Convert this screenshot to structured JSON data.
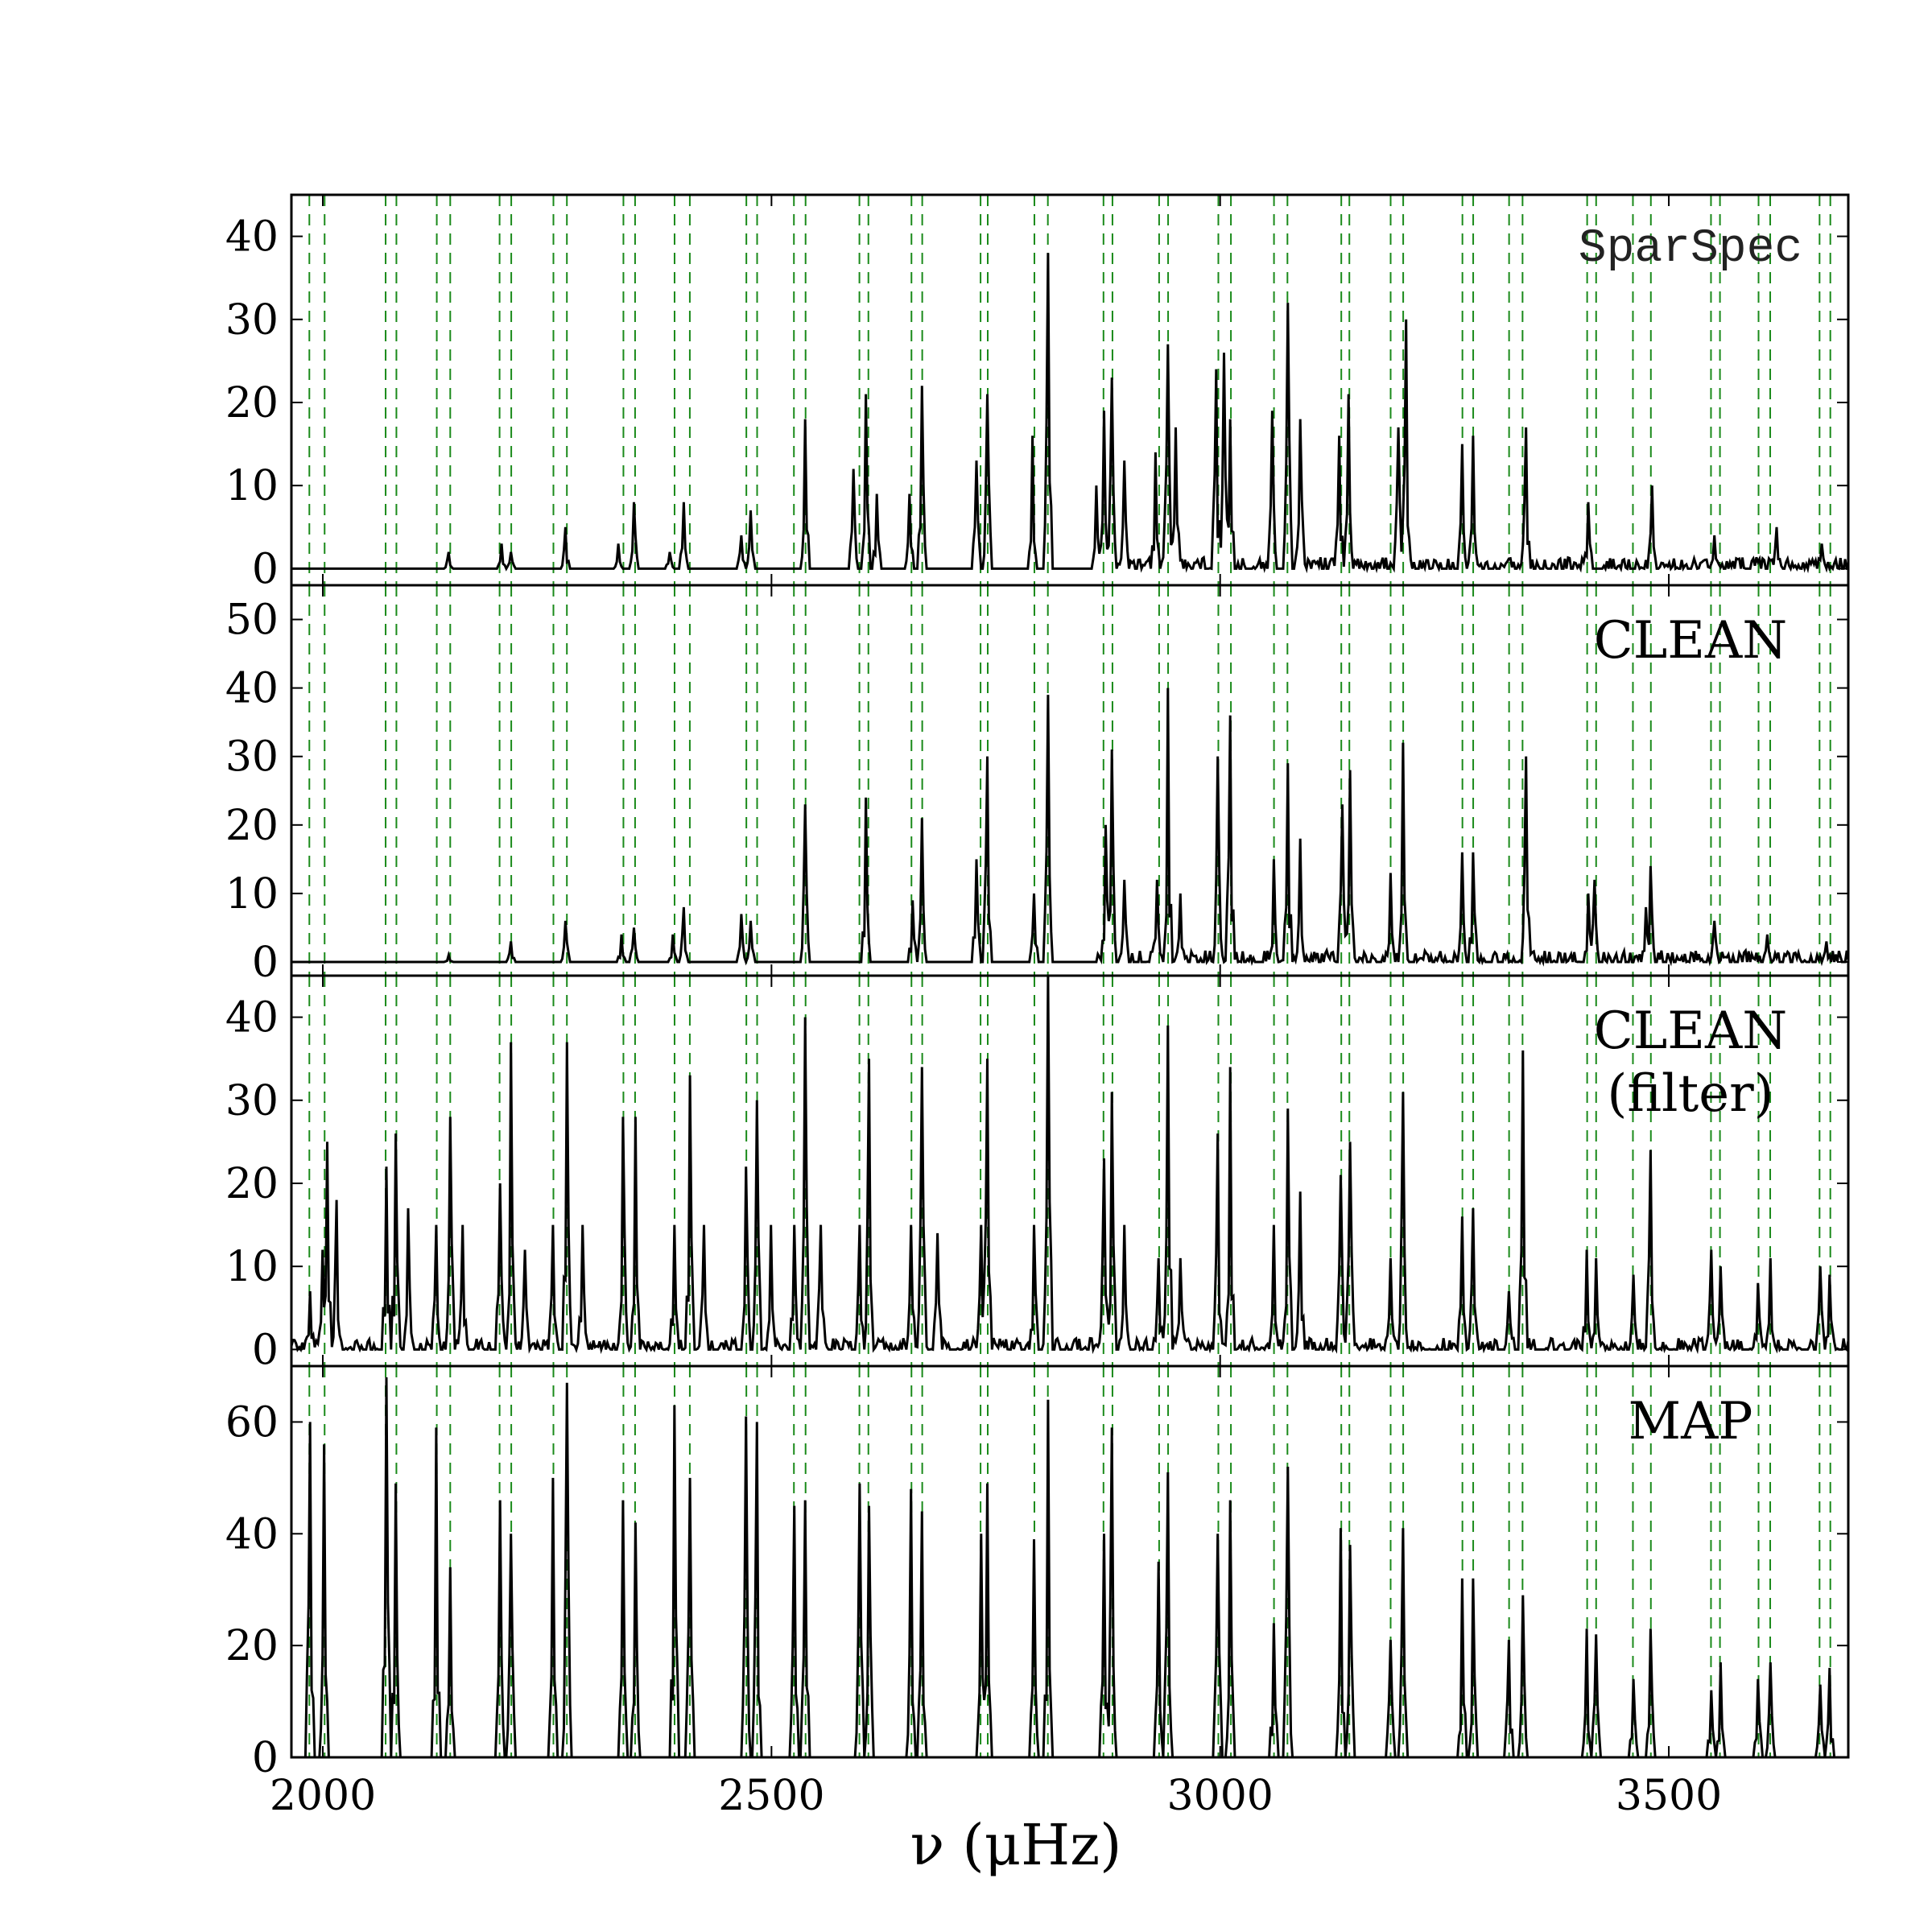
{
  "chart_data": {
    "type": "line",
    "xlabel": "ν (μHz)",
    "xlim": [
      1965,
      3700
    ],
    "x_ticks": [
      2000,
      2500,
      3000,
      3500
    ],
    "mode_frequencies": [
      1985,
      2002,
      2070,
      2082,
      2127,
      2142,
      2197,
      2210,
      2257,
      2272,
      2335,
      2348,
      2392,
      2409,
      2472,
      2484,
      2525,
      2538,
      2598,
      2608,
      2656,
      2668,
      2733,
      2741,
      2793,
      2808,
      2870,
      2880,
      2932,
      2942,
      2998,
      3012,
      3060,
      3075,
      3135,
      3144,
      3190,
      3204,
      3270,
      3282,
      3322,
      3337,
      3409,
      3419,
      3460,
      3480,
      3547,
      3557,
      3600,
      3613,
      3668,
      3680
    ],
    "panels": [
      {
        "label": "SparSpec",
        "ylim": [
          -2,
          45
        ],
        "y_ticks": [
          0,
          10,
          20,
          30,
          40
        ],
        "peaks": [
          [
            2140,
            2
          ],
          [
            2199,
            3
          ],
          [
            2210,
            2
          ],
          [
            2270,
            5
          ],
          [
            2330,
            3
          ],
          [
            2346,
            8
          ],
          [
            2387,
            2
          ],
          [
            2403,
            8
          ],
          [
            2466,
            4
          ],
          [
            2477,
            7
          ],
          [
            2537,
            18
          ],
          [
            2606,
            21
          ],
          [
            2592,
            12
          ],
          [
            2618,
            9
          ],
          [
            2653,
            9
          ],
          [
            2668,
            22
          ],
          [
            2728,
            13
          ],
          [
            2741,
            21
          ],
          [
            2790,
            16
          ],
          [
            2808,
            38
          ],
          [
            2862,
            10
          ],
          [
            2871,
            19
          ],
          [
            2880,
            23
          ],
          [
            2893,
            13
          ],
          [
            2928,
            14
          ],
          [
            2942,
            27
          ],
          [
            2950,
            17
          ],
          [
            2995,
            24
          ],
          [
            3005,
            26
          ],
          [
            3012,
            18
          ],
          [
            3058,
            19
          ],
          [
            3075,
            32
          ],
          [
            3090,
            18
          ],
          [
            3132,
            16
          ],
          [
            3143,
            21
          ],
          [
            3198,
            17
          ],
          [
            3207,
            30
          ],
          [
            3270,
            15
          ],
          [
            3282,
            16
          ],
          [
            3340,
            17
          ],
          [
            3410,
            8
          ],
          [
            3482,
            10
          ],
          [
            3550,
            4
          ],
          [
            3620,
            5
          ],
          [
            3670,
            3
          ]
        ],
        "noise_from": 2860
      },
      {
        "label": "CLEAN",
        "ylim": [
          -2,
          55
        ],
        "y_ticks": [
          0,
          10,
          20,
          30,
          40,
          50
        ],
        "peaks": [
          [
            2140,
            1
          ],
          [
            2210,
            3
          ],
          [
            2270,
            6
          ],
          [
            2332,
            4
          ],
          [
            2346,
            5
          ],
          [
            2390,
            4
          ],
          [
            2403,
            8
          ],
          [
            2466,
            7
          ],
          [
            2477,
            6
          ],
          [
            2537,
            23
          ],
          [
            2606,
            24
          ],
          [
            2658,
            9
          ],
          [
            2668,
            21
          ],
          [
            2728,
            15
          ],
          [
            2741,
            30
          ],
          [
            2793,
            10
          ],
          [
            2808,
            39
          ],
          [
            2872,
            20
          ],
          [
            2880,
            31
          ],
          [
            2893,
            12
          ],
          [
            2930,
            12
          ],
          [
            2942,
            40
          ],
          [
            2955,
            10
          ],
          [
            2998,
            30
          ],
          [
            3012,
            36
          ],
          [
            3060,
            15
          ],
          [
            3075,
            29
          ],
          [
            3090,
            18
          ],
          [
            3136,
            23
          ],
          [
            3145,
            28
          ],
          [
            3190,
            13
          ],
          [
            3204,
            32
          ],
          [
            3270,
            16
          ],
          [
            3282,
            16
          ],
          [
            3340,
            30
          ],
          [
            3411,
            10
          ],
          [
            3418,
            12
          ],
          [
            3475,
            8
          ],
          [
            3480,
            14
          ],
          [
            3550,
            6
          ],
          [
            3610,
            4
          ],
          [
            3676,
            3
          ]
        ],
        "noise_from": 2860
      },
      {
        "label": "CLEAN",
        "label_line2": "(filter)",
        "ylim": [
          -2,
          45
        ],
        "y_ticks": [
          0,
          10,
          20,
          30,
          40
        ],
        "peaks": [
          [
            1985,
            7
          ],
          [
            2000,
            12
          ],
          [
            2005,
            25
          ],
          [
            2015,
            18
          ],
          [
            2070,
            22
          ],
          [
            2082,
            26
          ],
          [
            2095,
            17
          ],
          [
            2127,
            15
          ],
          [
            2142,
            28
          ],
          [
            2155,
            15
          ],
          [
            2197,
            20
          ],
          [
            2210,
            37
          ],
          [
            2225,
            12
          ],
          [
            2257,
            15
          ],
          [
            2272,
            37
          ],
          [
            2290,
            15
          ],
          [
            2335,
            28
          ],
          [
            2348,
            28
          ],
          [
            2392,
            15
          ],
          [
            2409,
            33
          ],
          [
            2425,
            15
          ],
          [
            2472,
            22
          ],
          [
            2484,
            30
          ],
          [
            2500,
            15
          ],
          [
            2525,
            15
          ],
          [
            2538,
            40
          ],
          [
            2555,
            15
          ],
          [
            2598,
            15
          ],
          [
            2608,
            35
          ],
          [
            2656,
            15
          ],
          [
            2668,
            34
          ],
          [
            2685,
            14
          ],
          [
            2733,
            15
          ],
          [
            2741,
            35
          ],
          [
            2793,
            15
          ],
          [
            2808,
            45
          ],
          [
            2870,
            23
          ],
          [
            2880,
            31
          ],
          [
            2893,
            15
          ],
          [
            2932,
            11
          ],
          [
            2942,
            39
          ],
          [
            2955,
            11
          ],
          [
            2998,
            26
          ],
          [
            3012,
            34
          ],
          [
            3060,
            15
          ],
          [
            3075,
            29
          ],
          [
            3090,
            19
          ],
          [
            3135,
            21
          ],
          [
            3144,
            25
          ],
          [
            3190,
            11
          ],
          [
            3204,
            31
          ],
          [
            3270,
            16
          ],
          [
            3282,
            17
          ],
          [
            3322,
            7
          ],
          [
            3337,
            36
          ],
          [
            3409,
            12
          ],
          [
            3419,
            11
          ],
          [
            3460,
            9
          ],
          [
            3480,
            24
          ],
          [
            3547,
            12
          ],
          [
            3557,
            10
          ],
          [
            3600,
            8
          ],
          [
            3613,
            11
          ],
          [
            3668,
            10
          ],
          [
            3680,
            9
          ]
        ],
        "noise_from": 1965
      },
      {
        "label": "MAP",
        "ylim": [
          0,
          70
        ],
        "y_ticks": [
          0,
          20,
          40,
          60
        ],
        "peaks": [
          [
            1985,
            60
          ],
          [
            2002,
            56
          ],
          [
            2070,
            68
          ],
          [
            2082,
            49
          ],
          [
            2127,
            59
          ],
          [
            2142,
            34
          ],
          [
            2197,
            46
          ],
          [
            2210,
            40
          ],
          [
            2257,
            50
          ],
          [
            2272,
            67
          ],
          [
            2335,
            46
          ],
          [
            2348,
            42
          ],
          [
            2392,
            63
          ],
          [
            2409,
            50
          ],
          [
            2472,
            61
          ],
          [
            2484,
            60
          ],
          [
            2525,
            45
          ],
          [
            2538,
            46
          ],
          [
            2598,
            49
          ],
          [
            2608,
            45
          ],
          [
            2656,
            48
          ],
          [
            2668,
            44
          ],
          [
            2733,
            40
          ],
          [
            2741,
            49
          ],
          [
            2793,
            39
          ],
          [
            2808,
            64
          ],
          [
            2870,
            40
          ],
          [
            2880,
            59
          ],
          [
            2932,
            35
          ],
          [
            2942,
            51
          ],
          [
            2998,
            40
          ],
          [
            3012,
            46
          ],
          [
            3060,
            24
          ],
          [
            3075,
            52
          ],
          [
            3135,
            41
          ],
          [
            3144,
            38
          ],
          [
            3190,
            21
          ],
          [
            3204,
            41
          ],
          [
            3270,
            32
          ],
          [
            3282,
            32
          ],
          [
            3322,
            21
          ],
          [
            3337,
            29
          ],
          [
            3409,
            23
          ],
          [
            3419,
            22
          ],
          [
            3460,
            14
          ],
          [
            3480,
            23
          ],
          [
            3547,
            12
          ],
          [
            3557,
            17
          ],
          [
            3600,
            14
          ],
          [
            3613,
            17
          ],
          [
            3668,
            13
          ],
          [
            3680,
            16
          ]
        ],
        "noise_from": 9999
      }
    ],
    "colors": {
      "spectrum": "#000000",
      "mode_lines": "#1a8a1a",
      "axes": "#000000"
    }
  }
}
